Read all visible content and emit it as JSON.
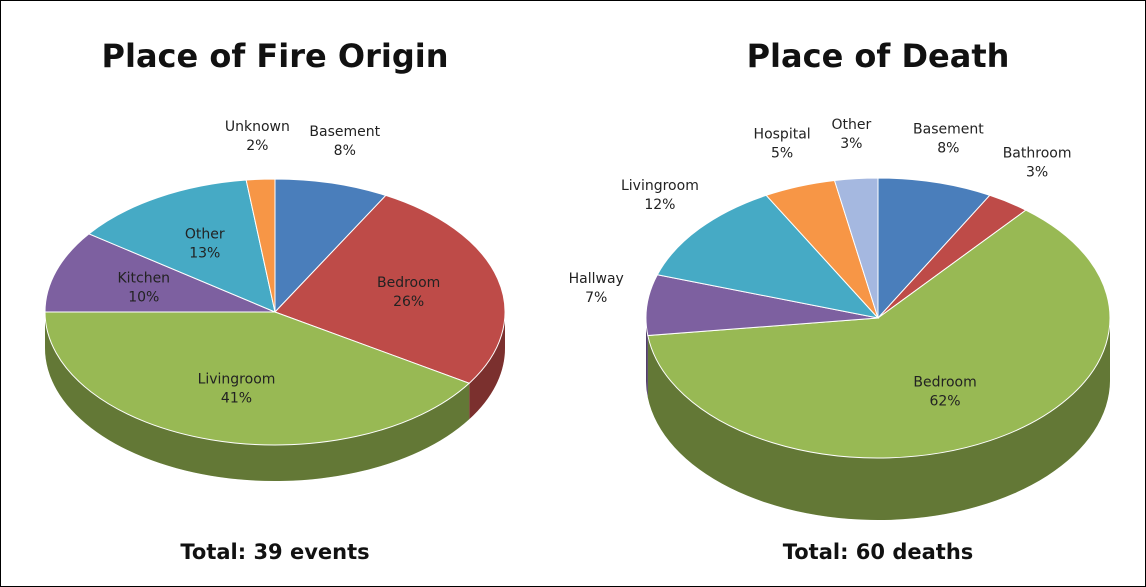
{
  "chart_data": [
    {
      "type": "pie",
      "title": "Place of Fire Origin",
      "subtitle": "Total: 39 events",
      "categories": [
        "Basement",
        "Bedroom",
        "Livingroom",
        "Kitchen",
        "Other",
        "Unknown"
      ],
      "values": [
        8,
        26,
        41,
        10,
        13,
        2
      ],
      "value_labels": [
        "8%",
        "26%",
        "41%",
        "10%",
        "13%",
        "2%"
      ],
      "colors": [
        "#4a7ebb",
        "#be4b48",
        "#98b954",
        "#7d60a0",
        "#46aac5",
        "#f79646"
      ]
    },
    {
      "type": "pie",
      "title": "Place of Death",
      "subtitle": "Total: 60 deaths",
      "categories": [
        "Basement",
        "Bathroom",
        "Bedroom",
        "Hallway",
        "Livingroom",
        "Hospital",
        "Other"
      ],
      "values": [
        8,
        3,
        62,
        7,
        12,
        5,
        3
      ],
      "value_labels": [
        "8%",
        "3%",
        "62%",
        "7%",
        "12%",
        "5%",
        "3%"
      ],
      "colors": [
        "#4a7ebb",
        "#be4b48",
        "#98b954",
        "#7d60a0",
        "#46aac5",
        "#f79646",
        "#a5b8e0"
      ]
    }
  ]
}
